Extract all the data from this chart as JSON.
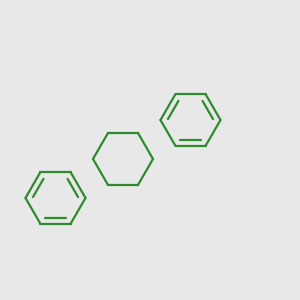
{
  "bg_color": "#e8e8e8",
  "bond_color": "#2d8b2d",
  "o_color": "#ee1111",
  "cl_color": "#44aa44",
  "line_width": 1.6,
  "figsize": [
    3.0,
    3.0
  ],
  "dpi": 100
}
